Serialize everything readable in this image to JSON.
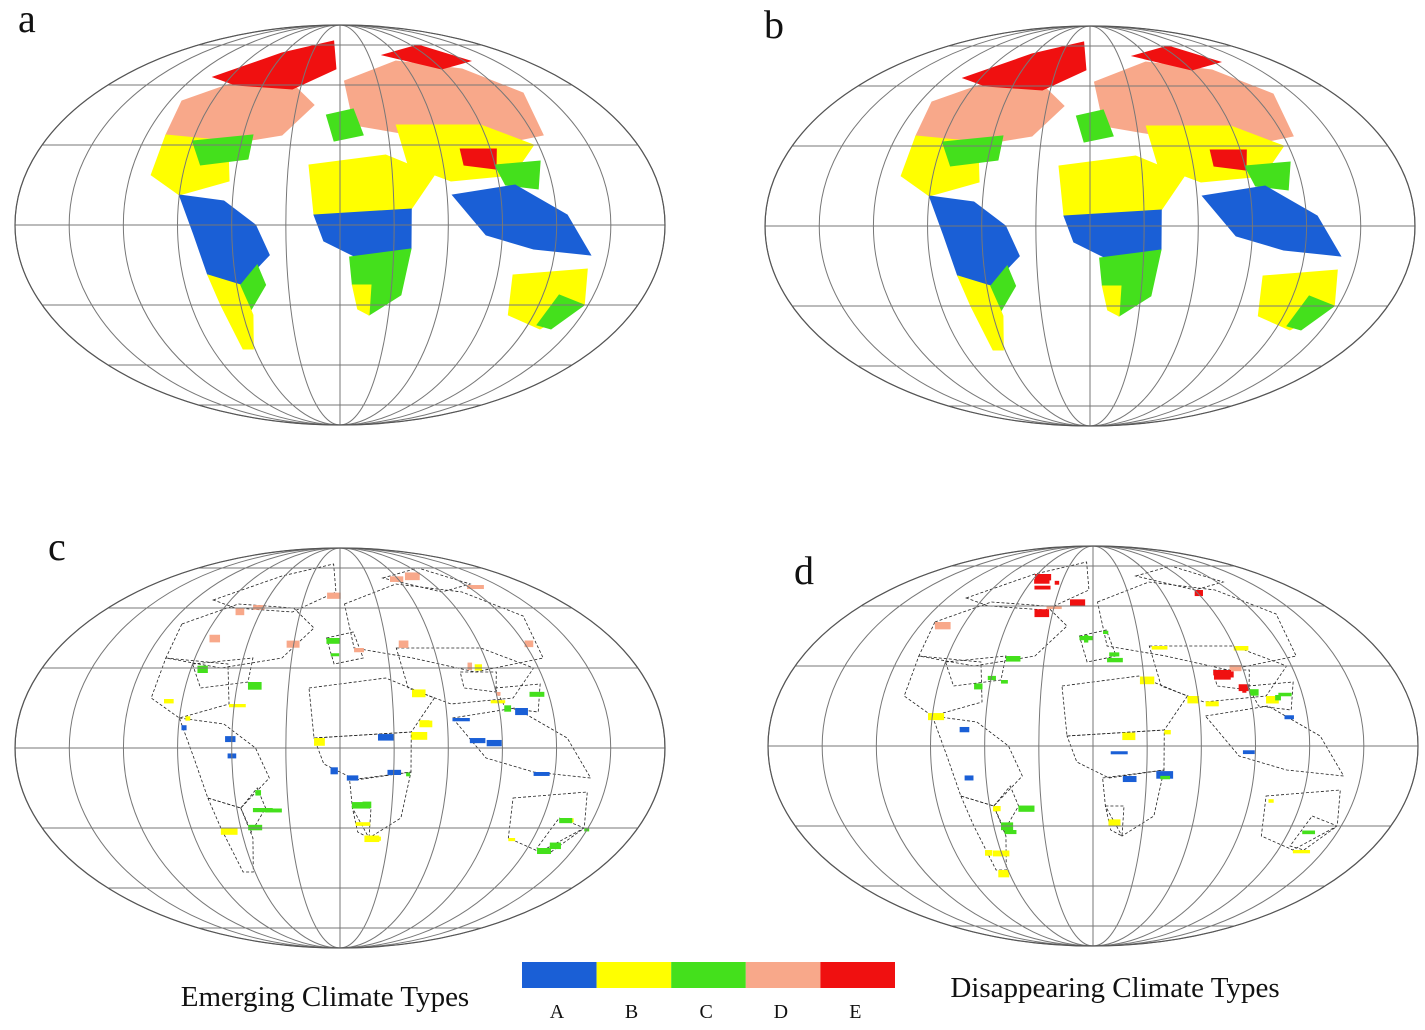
{
  "panels": [
    {
      "label": "a"
    },
    {
      "label": "b"
    },
    {
      "label": "c"
    },
    {
      "label": "d"
    }
  ],
  "legend": {
    "left_text": "Emerging Climate Types",
    "right_text": "Disappearing Climate Types",
    "classes": [
      {
        "label": "A",
        "color": "#1a5fd6"
      },
      {
        "label": "B",
        "color": "#ffff00"
      },
      {
        "label": "C",
        "color": "#44e01c"
      },
      {
        "label": "D",
        "color": "#f8a88a"
      },
      {
        "label": "E",
        "color": "#f01010"
      }
    ]
  }
}
